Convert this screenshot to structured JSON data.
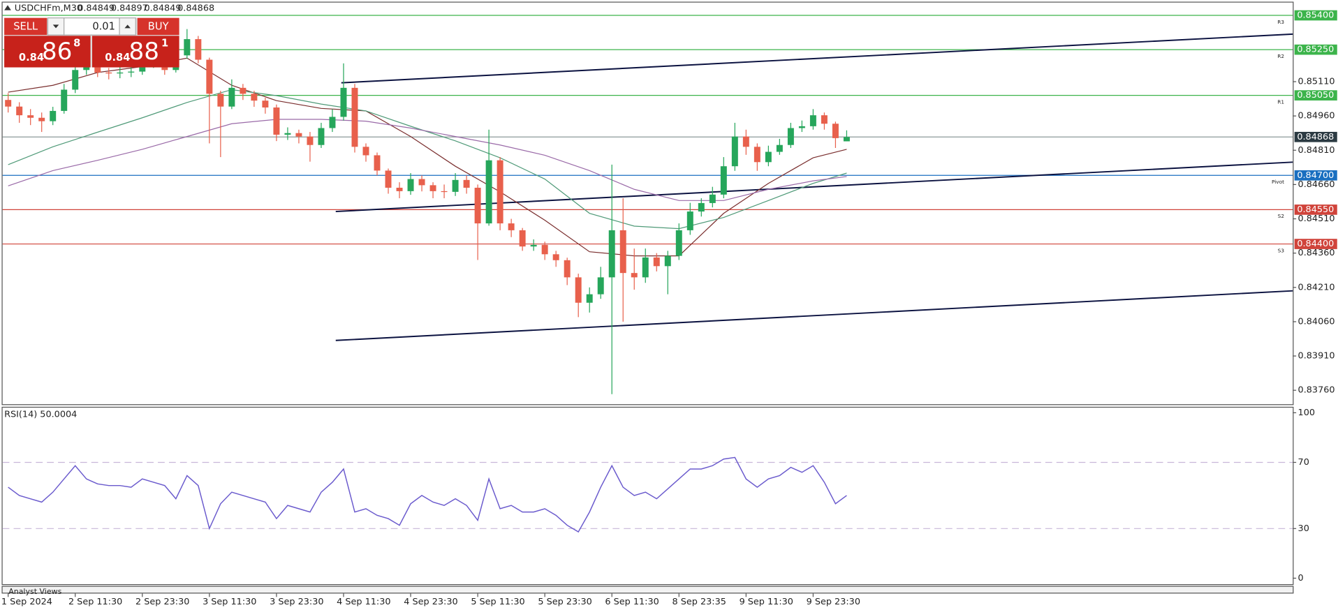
{
  "header": {
    "symbol": "USDCHFm,M30",
    "ohlc": [
      0.84849,
      0.84897,
      0.84849,
      0.84868
    ]
  },
  "trade_panel": {
    "sell": "SELL",
    "buy": "BUY",
    "lot": "0.01",
    "sell_price": {
      "prefix": "0.84",
      "big": "86",
      "small": "8"
    },
    "buy_price": {
      "prefix": "0.84",
      "big": "88",
      "small": "1"
    }
  },
  "footer_tab": "Analyst Views",
  "chart_data": [
    {
      "type": "candlestick",
      "colors": {
        "up": "#26a65b",
        "down": "#e8604c"
      },
      "xlim": [
        -0.5,
        114.9
      ],
      "ylim": [
        0.83699,
        0.85456
      ],
      "xticks": [
        {
          "value": 0,
          "label": "1 Sep 2024"
        },
        {
          "value": 6,
          "label": "2 Sep 11:30"
        },
        {
          "value": 12,
          "label": "2 Sep 23:30"
        },
        {
          "value": 18,
          "label": "3 Sep 11:30"
        },
        {
          "value": 24,
          "label": "3 Sep 23:30"
        },
        {
          "value": 30,
          "label": "4 Sep 11:30"
        },
        {
          "value": 36,
          "label": "4 Sep 23:30"
        },
        {
          "value": 42,
          "label": "5 Sep 11:30"
        },
        {
          "value": 48,
          "label": "5 Sep 23:30"
        },
        {
          "value": 54,
          "label": "6 Sep 11:30"
        },
        {
          "value": 60,
          "label": "8 Sep 23:35"
        },
        {
          "value": 66,
          "label": "9 Sep 11:30"
        },
        {
          "value": 72,
          "label": "9 Sep 23:30"
        }
      ],
      "yticks": [
        {
          "value": 0.8511,
          "label": "0.85110"
        },
        {
          "value": 0.8496,
          "label": "0.84960"
        },
        {
          "value": 0.8481,
          "label": "0.84810"
        },
        {
          "value": 0.8466,
          "label": "0.84660"
        },
        {
          "value": 0.8451,
          "label": "0.84510"
        },
        {
          "value": 0.8436,
          "label": "0.84360"
        },
        {
          "value": 0.8421,
          "label": "0.84210"
        },
        {
          "value": 0.8406,
          "label": "0.84060"
        },
        {
          "value": 0.8391,
          "label": "0.83910"
        },
        {
          "value": 0.8376,
          "label": "0.83760"
        }
      ],
      "levels": [
        {
          "value": 0.854,
          "label": "0.85400",
          "tag": "R3",
          "color": "#3cb44b"
        },
        {
          "value": 0.8525,
          "label": "0.85250",
          "tag": "R2",
          "color": "#3cb44b"
        },
        {
          "value": 0.8505,
          "label": "0.85050",
          "tag": "R1",
          "color": "#3cb44b"
        },
        {
          "value": 0.847,
          "label": "0.84700",
          "tag": "Pivot",
          "color": "#1a6fc0"
        },
        {
          "value": 0.8455,
          "label": "0.84550",
          "tag": "S2",
          "color": "#d0433a"
        },
        {
          "value": 0.844,
          "label": "0.84400",
          "tag": "S3",
          "color": "#d0433a"
        }
      ],
      "current_price": 0.84868,
      "open": [
        0.8503,
        0.85001,
        0.84963,
        0.84952,
        0.84937,
        0.84982,
        0.85075,
        0.85161,
        0.85184,
        0.8515,
        0.85146,
        0.8515,
        0.85154,
        0.85184,
        0.85206,
        0.85161,
        0.85225,
        0.85296,
        0.85206,
        0.85057,
        0.85001,
        0.85083,
        0.85057,
        0.85027,
        0.84997,
        0.84878,
        0.84885,
        0.8487,
        0.84833,
        0.84907,
        0.84956,
        0.85083,
        0.84825,
        0.84788,
        0.84721,
        0.84646,
        0.84631,
        0.84684,
        0.84657,
        0.84631,
        0.84628,
        0.8468,
        0.84646,
        0.8449,
        0.84766,
        0.8449,
        0.8446,
        0.84389,
        0.84396,
        0.84355,
        0.84329,
        0.84254,
        0.84143,
        0.8418,
        0.84254,
        0.8446,
        0.84273,
        0.84254,
        0.84341,
        0.84303,
        0.84348,
        0.8446,
        0.84542,
        0.84579,
        0.84616,
        0.8474,
        0.8487,
        0.84825,
        0.84758,
        0.84803,
        0.84833,
        0.84907,
        0.84915,
        0.84963,
        0.84926,
        0.84849
      ],
      "high": [
        0.8506,
        0.8502,
        0.8499,
        0.84975,
        0.85,
        0.851,
        0.8519,
        0.8523,
        0.852,
        0.8517,
        0.85175,
        0.8518,
        0.85205,
        0.8524,
        0.85225,
        0.8526,
        0.8534,
        0.8531,
        0.85215,
        0.8507,
        0.8512,
        0.851,
        0.8507,
        0.8504,
        0.8501,
        0.8491,
        0.849,
        0.8489,
        0.8493,
        0.8499,
        0.8519,
        0.851,
        0.8484,
        0.848,
        0.8473,
        0.8467,
        0.8471,
        0.847,
        0.8467,
        0.8466,
        0.8471,
        0.847,
        0.8466,
        0.849,
        0.8478,
        0.8451,
        0.8447,
        0.8442,
        0.8441,
        0.8437,
        0.8434,
        0.8427,
        0.8421,
        0.843,
        0.84747,
        0.846,
        0.8438,
        0.8438,
        0.8436,
        0.8437,
        0.8449,
        0.8458,
        0.846,
        0.8465,
        0.8478,
        0.8493,
        0.849,
        0.8484,
        0.8483,
        0.8486,
        0.8493,
        0.8494,
        0.8499,
        0.84975,
        0.84935,
        0.84897
      ],
      "low": [
        0.84975,
        0.8493,
        0.8492,
        0.8489,
        0.8492,
        0.8497,
        0.8506,
        0.8514,
        0.8513,
        0.8512,
        0.85125,
        0.8513,
        0.8514,
        0.8517,
        0.8514,
        0.8515,
        0.8521,
        0.8519,
        0.8484,
        0.8478,
        0.8499,
        0.8503,
        0.85,
        0.8497,
        0.8485,
        0.84855,
        0.8484,
        0.8476,
        0.8482,
        0.8489,
        0.8494,
        0.848,
        0.8476,
        0.847,
        0.8462,
        0.846,
        0.84615,
        0.8463,
        0.846,
        0.846,
        0.8461,
        0.8462,
        0.8433,
        0.8448,
        0.8446,
        0.8443,
        0.8437,
        0.8437,
        0.8433,
        0.843,
        0.8422,
        0.8408,
        0.841,
        0.8416,
        0.83743,
        0.8406,
        0.842,
        0.8423,
        0.8428,
        0.8418,
        0.8433,
        0.8444,
        0.8452,
        0.8456,
        0.846,
        0.8472,
        0.8479,
        0.8472,
        0.8474,
        0.8479,
        0.8482,
        0.8489,
        0.849,
        0.849,
        0.8482,
        0.84849
      ],
      "close": [
        0.85001,
        0.84963,
        0.84952,
        0.84937,
        0.84982,
        0.85075,
        0.85161,
        0.85184,
        0.8515,
        0.85146,
        0.8515,
        0.85154,
        0.85184,
        0.85206,
        0.85161,
        0.85225,
        0.85296,
        0.85206,
        0.85057,
        0.85001,
        0.85083,
        0.85057,
        0.85027,
        0.84997,
        0.84878,
        0.84885,
        0.8487,
        0.84833,
        0.84907,
        0.84956,
        0.85083,
        0.84825,
        0.84788,
        0.84721,
        0.84646,
        0.84631,
        0.84684,
        0.84657,
        0.84631,
        0.84628,
        0.8468,
        0.84646,
        0.8449,
        0.84766,
        0.8449,
        0.8446,
        0.84389,
        0.84396,
        0.84355,
        0.84329,
        0.84254,
        0.84143,
        0.8418,
        0.84254,
        0.8446,
        0.84273,
        0.84254,
        0.84341,
        0.84303,
        0.84348,
        0.8446,
        0.84542,
        0.84579,
        0.84616,
        0.8474,
        0.8487,
        0.84825,
        0.84758,
        0.84803,
        0.84833,
        0.84907,
        0.84915,
        0.84963,
        0.84926,
        0.84863,
        0.84868
      ],
      "moving_averages": [
        {
          "color": "#7a2e2e",
          "x": [
            0,
            4,
            8,
            12,
            16,
            20,
            24,
            28,
            32,
            36,
            40,
            44,
            48,
            52,
            56,
            60,
            64,
            68,
            72,
            75
          ],
          "values": [
            0.85064,
            0.85094,
            0.8515,
            0.85176,
            0.85213,
            0.85094,
            0.85027,
            0.84993,
            0.84982,
            0.8487,
            0.8474,
            0.84628,
            0.84504,
            0.84366,
            0.84348,
            0.84348,
            0.84534,
            0.84665,
            0.84777,
            0.84814
          ]
        },
        {
          "color": "#4f9a78",
          "x": [
            0,
            4,
            8,
            12,
            16,
            20,
            24,
            28,
            32,
            36,
            40,
            44,
            48,
            52,
            56,
            60,
            64,
            68,
            72,
            75
          ],
          "values": [
            0.84747,
            0.84825,
            0.84889,
            0.84952,
            0.85019,
            0.85075,
            0.85049,
            0.85012,
            0.84982,
            0.84915,
            0.84851,
            0.84777,
            0.84684,
            0.84534,
            0.84478,
            0.84467,
            0.84516,
            0.8459,
            0.84665,
            0.8471
          ]
        },
        {
          "color": "#9a6aa8",
          "x": [
            0,
            4,
            8,
            12,
            16,
            20,
            24,
            28,
            32,
            36,
            40,
            44,
            48,
            52,
            56,
            60,
            64,
            68,
            72,
            75
          ],
          "values": [
            0.84654,
            0.84721,
            0.84766,
            0.84814,
            0.8487,
            0.84926,
            0.84945,
            0.84945,
            0.84937,
            0.84907,
            0.8487,
            0.84833,
            0.84788,
            0.84721,
            0.84639,
            0.8459,
            0.8459,
            0.84639,
            0.84676,
            0.84695
          ]
        }
      ],
      "trendlines": [
        {
          "color": "#0b1240",
          "x": [
            29.8,
            114.9
          ],
          "values": [
            0.85105,
            0.85318
          ]
        },
        {
          "color": "#0b1240",
          "x": [
            29.3,
            114.9
          ],
          "values": [
            0.84542,
            0.84758
          ]
        },
        {
          "color": "#0b1240",
          "x": [
            29.3,
            114.9
          ],
          "values": [
            0.83978,
            0.84195
          ]
        }
      ]
    },
    {
      "type": "line",
      "title": "RSI(14) 50.0004",
      "color": "#6a5acd",
      "xlim": [
        -0.5,
        114.9
      ],
      "ylim": [
        0,
        100
      ],
      "yticks": [
        0,
        30,
        70,
        100
      ],
      "levels": [
        30,
        70
      ],
      "values": [
        55,
        50,
        48,
        46,
        52,
        60,
        68,
        60,
        57,
        56,
        56,
        55,
        60,
        58,
        56,
        48,
        62,
        56,
        30,
        45,
        52,
        50,
        48,
        46,
        36,
        44,
        42,
        40,
        52,
        58,
        66,
        40,
        42,
        38,
        36,
        32,
        45,
        50,
        46,
        44,
        48,
        44,
        35,
        60,
        42,
        44,
        40,
        40,
        42,
        38,
        32,
        28,
        40,
        55,
        68,
        55,
        50,
        52,
        48,
        54,
        60,
        66,
        66,
        68,
        72,
        73,
        60,
        55,
        60,
        62,
        67,
        64,
        68,
        58,
        45,
        50
      ]
    }
  ]
}
